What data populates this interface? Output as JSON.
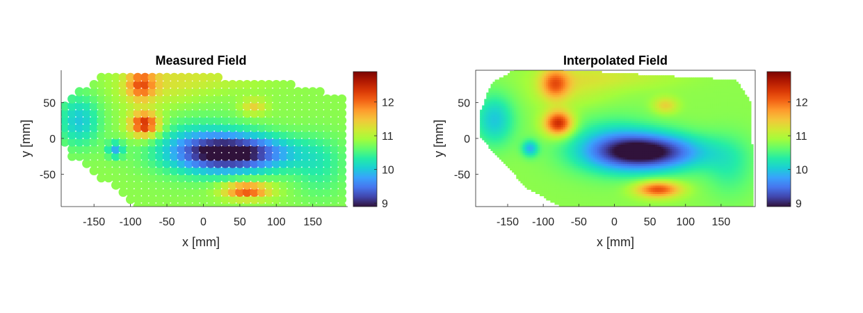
{
  "colormap": "turbo",
  "chart_data": [
    {
      "type": "scatter",
      "title": "Measured Field",
      "xlabel": "x [mm]",
      "ylabel": "y [mm]",
      "xlim": [
        -195,
        198
      ],
      "ylim": [
        -95,
        95
      ],
      "xticks": [
        -150,
        -100,
        -50,
        0,
        50,
        100,
        150
      ],
      "yticks": [
        -50,
        0,
        50
      ],
      "xtick_labels": [
        "-150",
        "-100",
        "-50",
        "0",
        "50",
        "100",
        "150"
      ],
      "ytick_labels": [
        "-50",
        "0",
        "50"
      ],
      "colorbar": {
        "range": [
          8.9,
          12.9
        ],
        "ticks": [
          9,
          10,
          11,
          12
        ],
        "tick_labels": [
          "9",
          "10",
          "11",
          "12"
        ]
      },
      "field_sources": [
        {
          "x": 45,
          "y": -20,
          "sx": 55,
          "sy": 18,
          "amp": -1.9
        },
        {
          "x": -5,
          "y": -10,
          "sx": 45,
          "sy": 28,
          "amp": -0.6
        },
        {
          "x": -80,
          "y": 20,
          "sx": 14,
          "sy": 12,
          "amp": 1.7
        },
        {
          "x": -85,
          "y": 75,
          "sx": 14,
          "sy": 15,
          "amp": 1.1
        },
        {
          "x": 60,
          "y": -72,
          "sx": 22,
          "sy": 8,
          "amp": 1.4
        },
        {
          "x": 70,
          "y": 45,
          "sx": 12,
          "sy": 8,
          "amp": 0.6
        },
        {
          "x": -170,
          "y": 25,
          "sx": 20,
          "sy": 25,
          "amp": -0.8
        },
        {
          "x": -120,
          "y": -15,
          "sx": 8,
          "sy": 8,
          "amp": -0.9
        },
        {
          "x": 160,
          "y": -40,
          "sx": 25,
          "sy": 30,
          "amp": -0.4
        },
        {
          "x": -60,
          "y": 70,
          "sx": 40,
          "sy": 20,
          "amp": 0.3
        },
        {
          "x": 0,
          "y": 85,
          "sx": 60,
          "sy": 12,
          "amp": 0.3
        }
      ],
      "baseline": 10.8,
      "points_region": [
        [
          -190,
          -10
        ],
        [
          -190,
          50
        ],
        [
          -130,
          95
        ],
        [
          -60,
          95
        ],
        [
          0,
          90
        ],
        [
          60,
          80
        ],
        [
          110,
          80
        ],
        [
          190,
          60
        ],
        [
          198,
          -95
        ],
        [
          -90,
          -95
        ],
        [
          -180,
          -25
        ]
      ]
    },
    {
      "type": "heatmap",
      "title": "Interpolated Field",
      "xlabel": "x [mm]",
      "ylabel": "y [mm]",
      "xlim": [
        -195,
        198
      ],
      "ylim": [
        -95,
        95
      ],
      "xticks": [
        -150,
        -100,
        -50,
        0,
        50,
        100,
        150
      ],
      "yticks": [
        -50,
        0,
        50
      ],
      "xtick_labels": [
        "-150",
        "-100",
        "-50",
        "0",
        "50",
        "100",
        "150"
      ],
      "ytick_labels": [
        "-50",
        "0",
        "50"
      ],
      "colorbar": {
        "range": [
          8.9,
          12.9
        ],
        "ticks": [
          9,
          10,
          11,
          12
        ],
        "tick_labels": [
          "9",
          "10",
          "11",
          "12"
        ]
      },
      "field_region": [
        [
          -175,
          75
        ],
        [
          -140,
          95
        ],
        [
          -90,
          95
        ],
        [
          170,
          80
        ],
        [
          190,
          50
        ],
        [
          195,
          -95
        ],
        [
          -80,
          -95
        ],
        [
          -125,
          -70
        ],
        [
          -190,
          0
        ],
        [
          -190,
          35
        ]
      ]
    }
  ]
}
